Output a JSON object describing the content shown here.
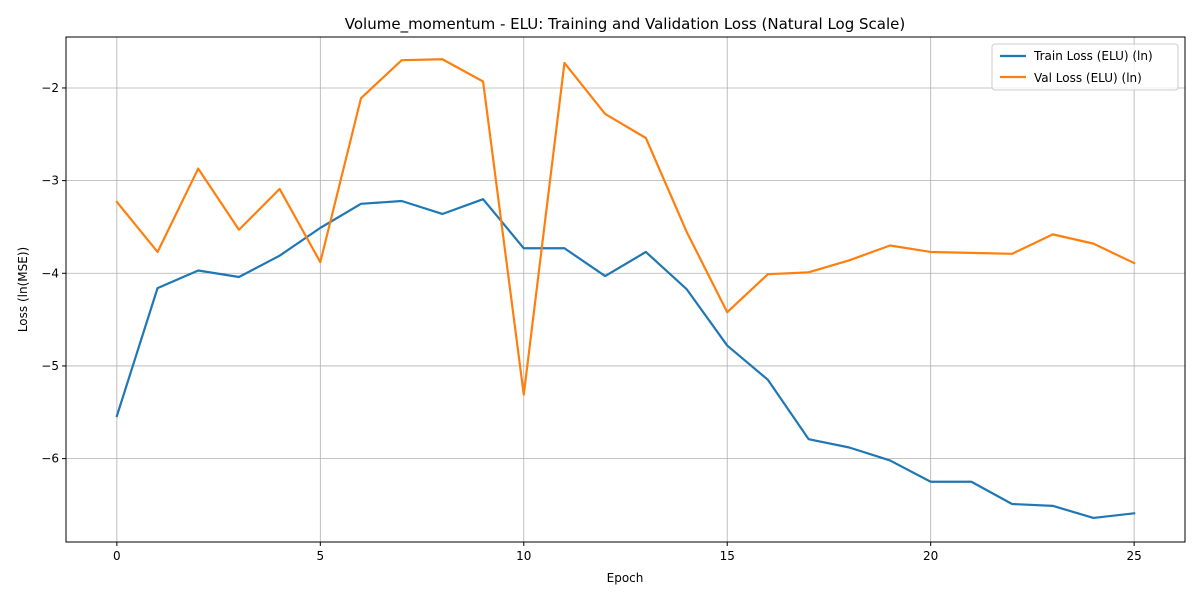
{
  "chart_data": {
    "type": "line",
    "title": "Volume_momentum - ELU: Training and Validation Loss (Natural Log Scale)",
    "xlabel": "Epoch",
    "ylabel": "Loss (ln(MSE))",
    "xlim": [
      -1.25,
      26.25
    ],
    "ylim": [
      -6.9,
      -1.45
    ],
    "xticks": [
      0,
      5,
      10,
      15,
      20,
      25
    ],
    "yticks": [
      -6,
      -5,
      -4,
      -3,
      -2
    ],
    "ytick_labels": [
      "−6",
      "−5",
      "−4",
      "−3",
      "−2"
    ],
    "grid": true,
    "legend_position": "top-right",
    "x": [
      0,
      1,
      2,
      3,
      4,
      5,
      6,
      7,
      8,
      9,
      10,
      11,
      12,
      13,
      14,
      15,
      16,
      17,
      18,
      19,
      20,
      21,
      22,
      23,
      24,
      25
    ],
    "series": [
      {
        "name": "Train Loss (ELU) (ln)",
        "color": "#1f77b4",
        "values": [
          -5.54,
          -4.16,
          -3.97,
          -4.04,
          -3.81,
          -3.51,
          -3.25,
          -3.22,
          -3.36,
          -3.2,
          -3.73,
          -3.73,
          -4.03,
          -3.77,
          -4.17,
          -4.78,
          -5.15,
          -5.79,
          -5.88,
          -6.02,
          -6.25,
          -6.25,
          -6.49,
          -6.51,
          -6.64,
          -6.59
        ]
      },
      {
        "name": "Val Loss (ELU) (ln)",
        "color": "#ff7f0e",
        "values": [
          -3.23,
          -3.77,
          -2.87,
          -3.53,
          -3.09,
          -3.88,
          -2.11,
          -1.7,
          -1.69,
          -1.93,
          -5.31,
          -1.73,
          -2.28,
          -2.54,
          -3.55,
          -4.42,
          -4.01,
          -3.99,
          -3.86,
          -3.7,
          -3.77,
          -3.78,
          -3.79,
          -3.58,
          -3.68,
          -3.89
        ]
      }
    ]
  }
}
